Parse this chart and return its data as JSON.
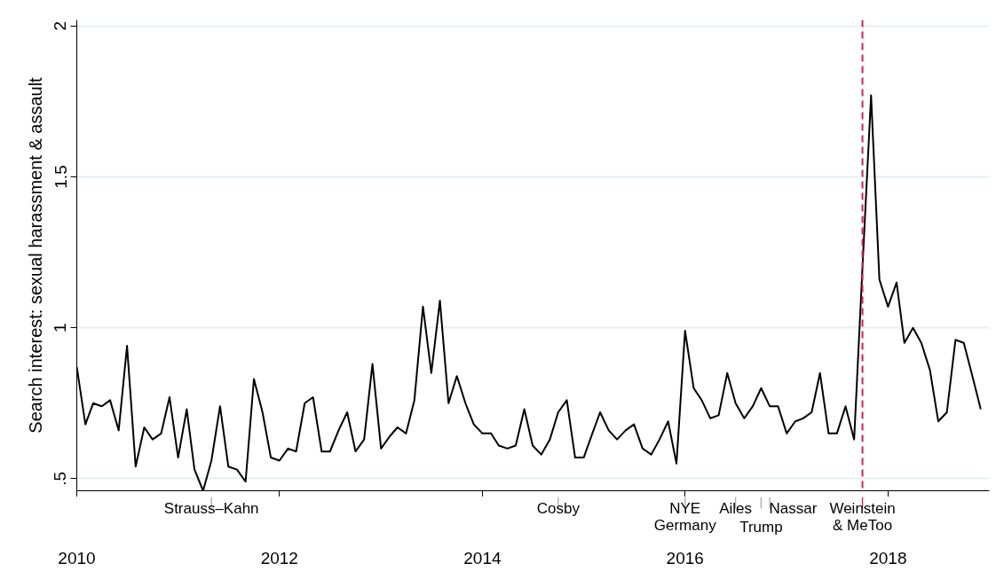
{
  "chart_data": {
    "type": "line",
    "ylabel": "Search interest: sexual harassment & assault",
    "x": [
      "2010-01",
      "2010-02",
      "2010-03",
      "2010-04",
      "2010-05",
      "2010-06",
      "2010-07",
      "2010-08",
      "2010-09",
      "2010-10",
      "2010-11",
      "2010-12",
      "2011-01",
      "2011-02",
      "2011-03",
      "2011-04",
      "2011-05",
      "2011-06",
      "2011-07",
      "2011-08",
      "2011-09",
      "2011-10",
      "2011-11",
      "2011-12",
      "2012-01",
      "2012-02",
      "2012-03",
      "2012-04",
      "2012-05",
      "2012-06",
      "2012-07",
      "2012-08",
      "2012-09",
      "2012-10",
      "2012-11",
      "2012-12",
      "2013-01",
      "2013-02",
      "2013-03",
      "2013-04",
      "2013-05",
      "2013-06",
      "2013-07",
      "2013-08",
      "2013-09",
      "2013-10",
      "2013-11",
      "2013-12",
      "2014-01",
      "2014-02",
      "2014-03",
      "2014-04",
      "2014-05",
      "2014-06",
      "2014-07",
      "2014-08",
      "2014-09",
      "2014-10",
      "2014-11",
      "2014-12",
      "2015-01",
      "2015-02",
      "2015-03",
      "2015-04",
      "2015-05",
      "2015-06",
      "2015-07",
      "2015-08",
      "2015-09",
      "2015-10",
      "2015-11",
      "2015-12",
      "2016-01",
      "2016-02",
      "2016-03",
      "2016-04",
      "2016-05",
      "2016-06",
      "2016-07",
      "2016-08",
      "2016-09",
      "2016-10",
      "2016-11",
      "2016-12",
      "2017-01",
      "2017-02",
      "2017-03",
      "2017-04",
      "2017-05",
      "2017-06",
      "2017-07",
      "2017-08",
      "2017-09",
      "2017-10",
      "2017-11",
      "2017-12",
      "2018-01",
      "2018-02",
      "2018-03",
      "2018-04",
      "2018-05",
      "2018-06",
      "2018-07",
      "2018-08",
      "2018-09",
      "2018-10",
      "2018-11",
      "2018-12"
    ],
    "series": [
      {
        "color": "#000000",
        "values": [
          0.87,
          0.68,
          0.75,
          0.74,
          0.76,
          0.66,
          0.94,
          0.54,
          0.67,
          0.63,
          0.65,
          0.77,
          0.57,
          0.73,
          0.53,
          0.46,
          0.56,
          0.74,
          0.54,
          0.53,
          0.49,
          0.83,
          0.72,
          0.57,
          0.56,
          0.6,
          0.59,
          0.75,
          0.77,
          0.59,
          0.59,
          0.66,
          0.72,
          0.59,
          0.63,
          0.88,
          0.6,
          0.64,
          0.67,
          0.65,
          0.76,
          1.07,
          0.85,
          1.09,
          0.75,
          0.84,
          0.75,
          0.68,
          0.65,
          0.65,
          0.61,
          0.6,
          0.61,
          0.73,
          0.61,
          0.58,
          0.63,
          0.72,
          0.76,
          0.57,
          0.57,
          0.65,
          0.72,
          0.66,
          0.63,
          0.66,
          0.68,
          0.6,
          0.58,
          0.63,
          0.69,
          0.55,
          0.99,
          0.8,
          0.76,
          0.7,
          0.71,
          0.85,
          0.75,
          0.7,
          0.74,
          0.8,
          0.74,
          0.74,
          0.65,
          0.69,
          0.7,
          0.72,
          0.85,
          0.65,
          0.65,
          0.74,
          0.63,
          1.2,
          1.77,
          1.16,
          1.07,
          1.15,
          0.95,
          1.0,
          0.95,
          0.86,
          0.69,
          0.72,
          0.96,
          0.95,
          0.84,
          0.73
        ]
      }
    ],
    "xlim": [
      "2010-01",
      "2019-01"
    ],
    "xticks": [
      "2010",
      "2012",
      "2014",
      "2016",
      "2018"
    ],
    "ylim": [
      0.46,
      2.02
    ],
    "yticks": [
      {
        "value": 0.5,
        "label": ".5"
      },
      1,
      1.5,
      2
    ],
    "grid": "y",
    "line_style": "solid",
    "ref_lines": [
      {
        "axis": "x",
        "value": "2011-05",
        "label": "Strauss–Kahn",
        "color": "#aaaaaa"
      },
      {
        "axis": "x",
        "value": "2014-10",
        "label": "Cosby",
        "color": "#aaaaaa"
      },
      {
        "axis": "x",
        "value": "2016-01",
        "label": "NYE\nGermany",
        "color": "#aaaaaa"
      },
      {
        "axis": "x",
        "value": "2016-07",
        "label": "Ailes",
        "color": "#aaaaaa"
      },
      {
        "axis": "x",
        "value": "2016-10",
        "label": "Trump",
        "color": "#aaaaaa"
      },
      {
        "axis": "x",
        "value": "2016-11",
        "label": "Nassar",
        "color": "#aaaaaa"
      },
      {
        "axis": "x",
        "value": "2017-10",
        "label": "Weinstein\n& MeToo",
        "color": "#d6204c",
        "line_style": "dashed"
      }
    ]
  }
}
